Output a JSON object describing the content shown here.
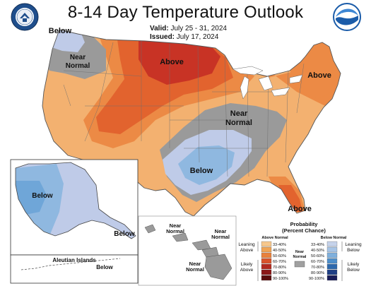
{
  "title": "8-14 Day Temperature Outlook",
  "valid_label": "Valid:",
  "valid_dates": "July 25 - 31, 2024",
  "issued_label": "Issued:",
  "issued_date": "July 17, 2024",
  "logos": {
    "left": "doc-seal",
    "right": "NOAA"
  },
  "region_labels": {
    "below_nw": "Below",
    "near_normal_nw": "Near\nNormal",
    "above_north": "Above",
    "above_northeast": "Above",
    "near_normal_central": "Near\nNormal",
    "below_south": "Below",
    "above_florida": "Above"
  },
  "alaska": {
    "below_west": "Below",
    "below_south": "Below",
    "aleutian_title": "Aleutian Islands",
    "aleutian_below": "Below"
  },
  "hawaii": {
    "near_normal_1": "Near\nNormal",
    "near_normal_2": "Near\nNormal",
    "near_normal_3": "Near\nNormal"
  },
  "legend": {
    "title": "Probability\n(Percent Chance)",
    "above_header": "Above Normal",
    "below_header": "Below Normal",
    "near_label": "Near\nNormal",
    "leaning_above": "Leaning\nAbove",
    "likely_above": "Likely\nAbove",
    "leaning_below": "Leaning\nBelow",
    "likely_below": "Likely\nBelow",
    "ranges": [
      "33-40%",
      "40-50%",
      "50-60%",
      "60-70%",
      "70-80%",
      "80-90%",
      "90-100%"
    ],
    "above_colors": [
      "#f6c78d",
      "#f0a455",
      "#e8813c",
      "#d9532a",
      "#b22a1f",
      "#8b1717",
      "#5a0d0d"
    ],
    "below_colors": [
      "#c5d2ea",
      "#a7c4e6",
      "#7fb0dd",
      "#4e8fcb",
      "#2e69ad",
      "#1f3f86",
      "#191d59"
    ],
    "near_color": "#a0a0a0"
  },
  "colors": {
    "above_33": "#f3b170",
    "above_40": "#ec8a45",
    "above_50": "#e2632e",
    "above_60": "#c83325",
    "near": "#9a9a9a",
    "below_33": "#bfcbe8",
    "below_40": "#8fb8e0",
    "below_50": "#6fa6d8"
  }
}
